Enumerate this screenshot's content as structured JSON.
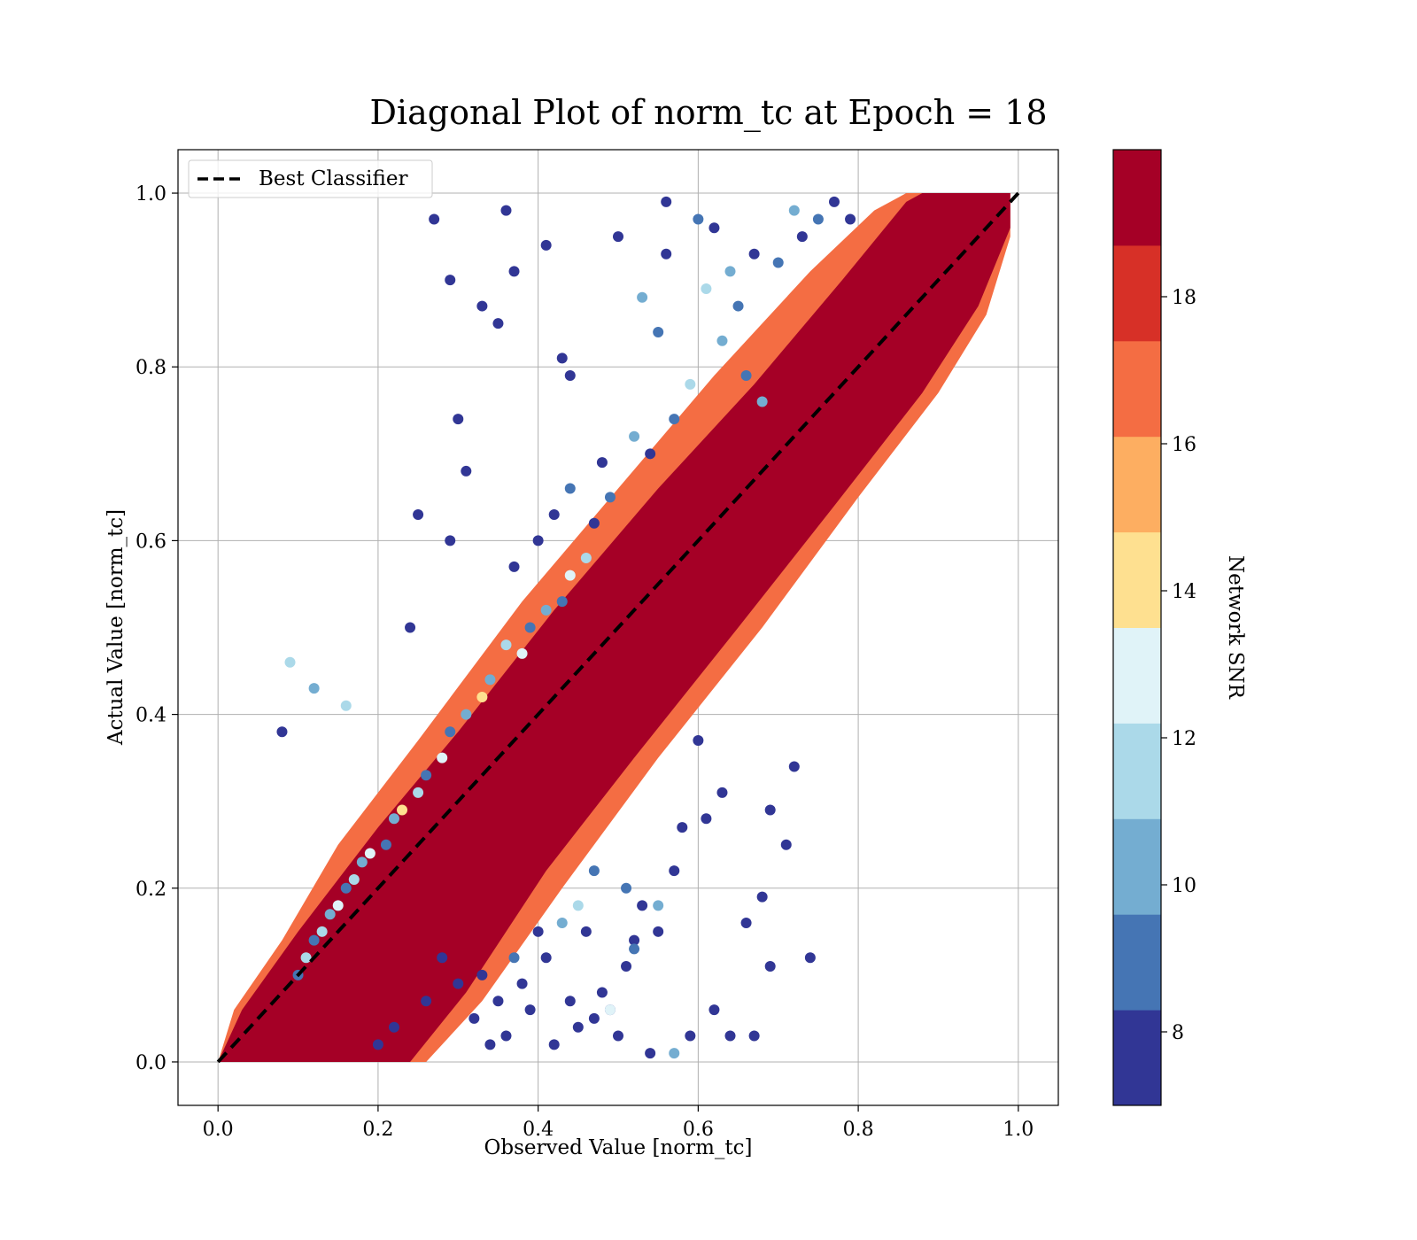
{
  "chart_data": {
    "type": "scatter",
    "title": "Diagonal Plot of norm_tc at Epoch = 18",
    "xlabel": "Observed Value [norm_tc]",
    "ylabel": "Actual Value [norm_tc]",
    "xlim": [
      -0.05,
      1.05
    ],
    "ylim": [
      -0.05,
      1.05
    ],
    "x_ticks": [
      "0.0",
      "0.2",
      "0.4",
      "0.6",
      "0.8",
      "1.0"
    ],
    "y_ticks": [
      "0.0",
      "0.2",
      "0.4",
      "0.6",
      "0.8",
      "1.0"
    ],
    "grid": true,
    "legend": {
      "placement": "upper-left",
      "entries": [
        {
          "label": "Best Classifier",
          "style": "dashed",
          "color": "#000000"
        }
      ]
    },
    "reference_line": {
      "label": "Best Classifier",
      "x": [
        0.0,
        1.0
      ],
      "y": [
        0.0,
        1.0
      ]
    },
    "colorbar": {
      "label": "Network SNR",
      "range": [
        7,
        20
      ],
      "ticks": [
        "8",
        "10",
        "12",
        "14",
        "16",
        "18"
      ],
      "bins": [
        {
          "from": 7.0,
          "to": 8.3,
          "color": "#313695"
        },
        {
          "from": 8.3,
          "to": 9.6,
          "color": "#4575b4"
        },
        {
          "from": 9.6,
          "to": 10.9,
          "color": "#74add1"
        },
        {
          "from": 10.9,
          "to": 12.2,
          "color": "#abd9e9"
        },
        {
          "from": 12.2,
          "to": 13.5,
          "color": "#e0f3f8"
        },
        {
          "from": 13.5,
          "to": 14.8,
          "color": "#fee090"
        },
        {
          "from": 14.8,
          "to": 16.1,
          "color": "#fdae61"
        },
        {
          "from": 16.1,
          "to": 17.4,
          "color": "#f46d43"
        },
        {
          "from": 17.4,
          "to": 18.7,
          "color": "#d73027"
        },
        {
          "from": 18.7,
          "to": 20.0,
          "color": "#a50026"
        }
      ]
    },
    "series": [
      {
        "x": [
          0.27,
          0.36,
          0.56,
          0.29,
          0.33,
          0.37,
          0.41,
          0.43,
          0.44,
          0.35,
          0.3,
          0.31,
          0.25,
          0.24,
          0.29,
          0.08,
          0.09,
          0.12,
          0.16,
          0.62,
          0.64,
          0.67,
          0.68,
          0.69,
          0.71,
          0.74,
          0.57,
          0.55,
          0.52,
          0.47,
          0.44,
          0.41,
          0.38,
          0.36,
          0.34,
          0.32,
          0.49,
          0.51,
          0.46,
          0.53,
          0.61,
          0.63,
          0.58,
          0.6,
          0.5,
          0.48,
          0.45,
          0.42,
          0.39,
          0.33,
          0.3,
          0.28,
          0.26,
          0.22,
          0.2,
          0.54,
          0.59,
          0.66,
          0.69,
          0.72,
          0.51,
          0.47,
          0.43,
          0.4,
          0.37,
          0.35,
          0.52,
          0.55,
          0.57,
          0.45,
          0.49,
          0.56,
          0.6,
          0.62,
          0.64,
          0.55,
          0.53,
          0.5,
          0.61,
          0.65,
          0.67,
          0.7,
          0.72,
          0.73,
          0.75,
          0.77,
          0.79,
          0.63,
          0.66,
          0.68,
          0.59,
          0.57,
          0.54,
          0.52,
          0.49,
          0.47,
          0.46,
          0.44,
          0.43,
          0.41,
          0.39,
          0.38,
          0.36,
          0.34,
          0.33,
          0.31,
          0.29,
          0.28,
          0.26,
          0.25,
          0.23,
          0.22,
          0.21,
          0.19,
          0.18,
          0.17,
          0.16,
          0.15,
          0.14,
          0.13,
          0.12,
          0.11,
          0.1,
          0.42,
          0.4,
          0.48,
          0.44,
          0.37
        ],
        "y": [
          0.97,
          0.98,
          0.99,
          0.9,
          0.87,
          0.91,
          0.94,
          0.81,
          0.79,
          0.85,
          0.74,
          0.68,
          0.63,
          0.5,
          0.6,
          0.38,
          0.46,
          0.43,
          0.41,
          0.06,
          0.03,
          0.03,
          0.19,
          0.11,
          0.25,
          0.12,
          0.22,
          0.15,
          0.14,
          0.05,
          0.07,
          0.12,
          0.09,
          0.03,
          0.02,
          0.05,
          0.06,
          0.11,
          0.15,
          0.18,
          0.28,
          0.31,
          0.27,
          0.37,
          0.03,
          0.08,
          0.04,
          0.02,
          0.06,
          0.1,
          0.09,
          0.12,
          0.07,
          0.04,
          0.02,
          0.01,
          0.03,
          0.16,
          0.29,
          0.34,
          0.2,
          0.22,
          0.16,
          0.15,
          0.12,
          0.07,
          0.13,
          0.18,
          0.01,
          0.18,
          0.06,
          0.93,
          0.97,
          0.96,
          0.91,
          0.84,
          0.88,
          0.95,
          0.89,
          0.87,
          0.93,
          0.92,
          0.98,
          0.95,
          0.97,
          0.99,
          0.97,
          0.83,
          0.79,
          0.76,
          0.78,
          0.74,
          0.7,
          0.72,
          0.65,
          0.62,
          0.58,
          0.56,
          0.53,
          0.52,
          0.5,
          0.47,
          0.48,
          0.44,
          0.42,
          0.4,
          0.38,
          0.35,
          0.33,
          0.31,
          0.29,
          0.28,
          0.25,
          0.24,
          0.23,
          0.21,
          0.2,
          0.18,
          0.17,
          0.15,
          0.14,
          0.12,
          0.1,
          0.63,
          0.6,
          0.69,
          0.66,
          0.57
        ],
        "snr": [
          7.5,
          7.6,
          7.8,
          7.4,
          7.5,
          7.7,
          7.3,
          7.6,
          7.5,
          7.6,
          7.4,
          7.5,
          7.6,
          7.5,
          7.4,
          7.6,
          11.5,
          10.5,
          12.0,
          7.5,
          7.6,
          7.4,
          7.5,
          7.6,
          7.4,
          7.5,
          7.6,
          7.5,
          7.4,
          7.6,
          7.5,
          7.4,
          7.6,
          7.5,
          7.4,
          7.6,
          7.5,
          7.6,
          7.4,
          7.5,
          7.6,
          7.4,
          7.5,
          7.6,
          7.5,
          7.4,
          7.6,
          7.5,
          7.4,
          7.6,
          7.5,
          7.6,
          7.4,
          7.5,
          7.6,
          7.5,
          7.4,
          7.6,
          7.5,
          7.4,
          8.5,
          9.5,
          10.5,
          8.0,
          9.0,
          7.8,
          8.8,
          9.8,
          10.8,
          11.5,
          12.5,
          8.2,
          9.3,
          7.6,
          10.2,
          8.6,
          9.7,
          7.9,
          11.1,
          8.4,
          7.7,
          8.9,
          10.4,
          7.5,
          9.1,
          8.1,
          7.6,
          9.9,
          8.7,
          10.6,
          11.8,
          8.3,
          7.9,
          10.1,
          9.4,
          8.2,
          11.3,
          12.6,
          9.0,
          10.7,
          8.5,
          13.2,
          11.9,
          9.6,
          14.1,
          10.3,
          8.8,
          12.2,
          9.3,
          11.4,
          13.6,
          10.0,
          8.6,
          12.8,
          9.8,
          11.0,
          8.4,
          13.0,
          10.6,
          12.1,
          9.2,
          11.7,
          8.9,
          7.7,
          8.0,
          7.6,
          9.1,
          7.8
        ]
      }
    ]
  }
}
